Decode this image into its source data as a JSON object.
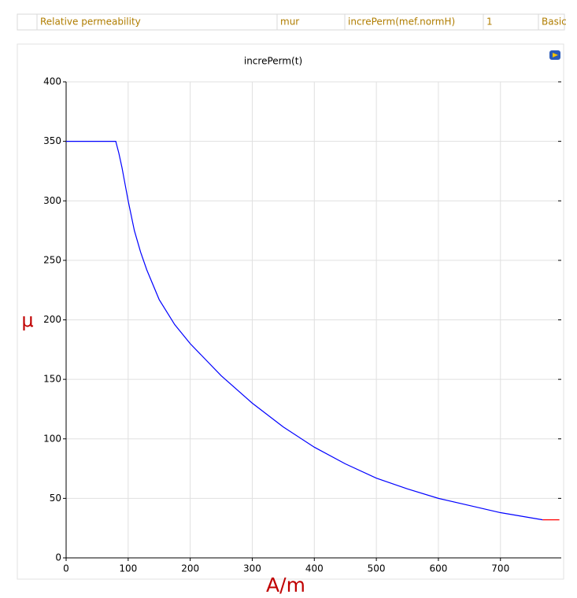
{
  "table": {
    "rows": [
      [
        "Relative permeability",
        "mur",
        "increPerm(mef.normH)",
        "1",
        "Basic"
      ]
    ]
  },
  "chart_data": {
    "type": "line",
    "title": "increPerm(t)",
    "x_label": "A/m",
    "y_label": "μ",
    "series": [
      {
        "color": "#0000ff",
        "x": [
          0,
          80,
          85,
          90,
          95,
          100,
          110,
          120,
          130,
          150,
          175,
          200,
          250,
          300,
          350,
          400,
          450,
          500,
          550,
          600,
          650,
          700,
          768
        ],
        "values": [
          350,
          350,
          340,
          328,
          314,
          300,
          275,
          257,
          242,
          217,
          196,
          180,
          153,
          130,
          110,
          93,
          79,
          67,
          58,
          50,
          44,
          38,
          32
        ]
      },
      {
        "color": "#ff0000",
        "x": [
          768,
          795
        ],
        "values": [
          32,
          32
        ]
      }
    ],
    "xlim": [
      0,
      798
    ],
    "ylim": [
      0,
      400
    ],
    "xticks": [
      0,
      100,
      200,
      300,
      400,
      500,
      600,
      700
    ],
    "yticks": [
      0,
      50,
      100,
      150,
      200,
      250,
      300,
      350,
      400
    ],
    "grid": true
  }
}
